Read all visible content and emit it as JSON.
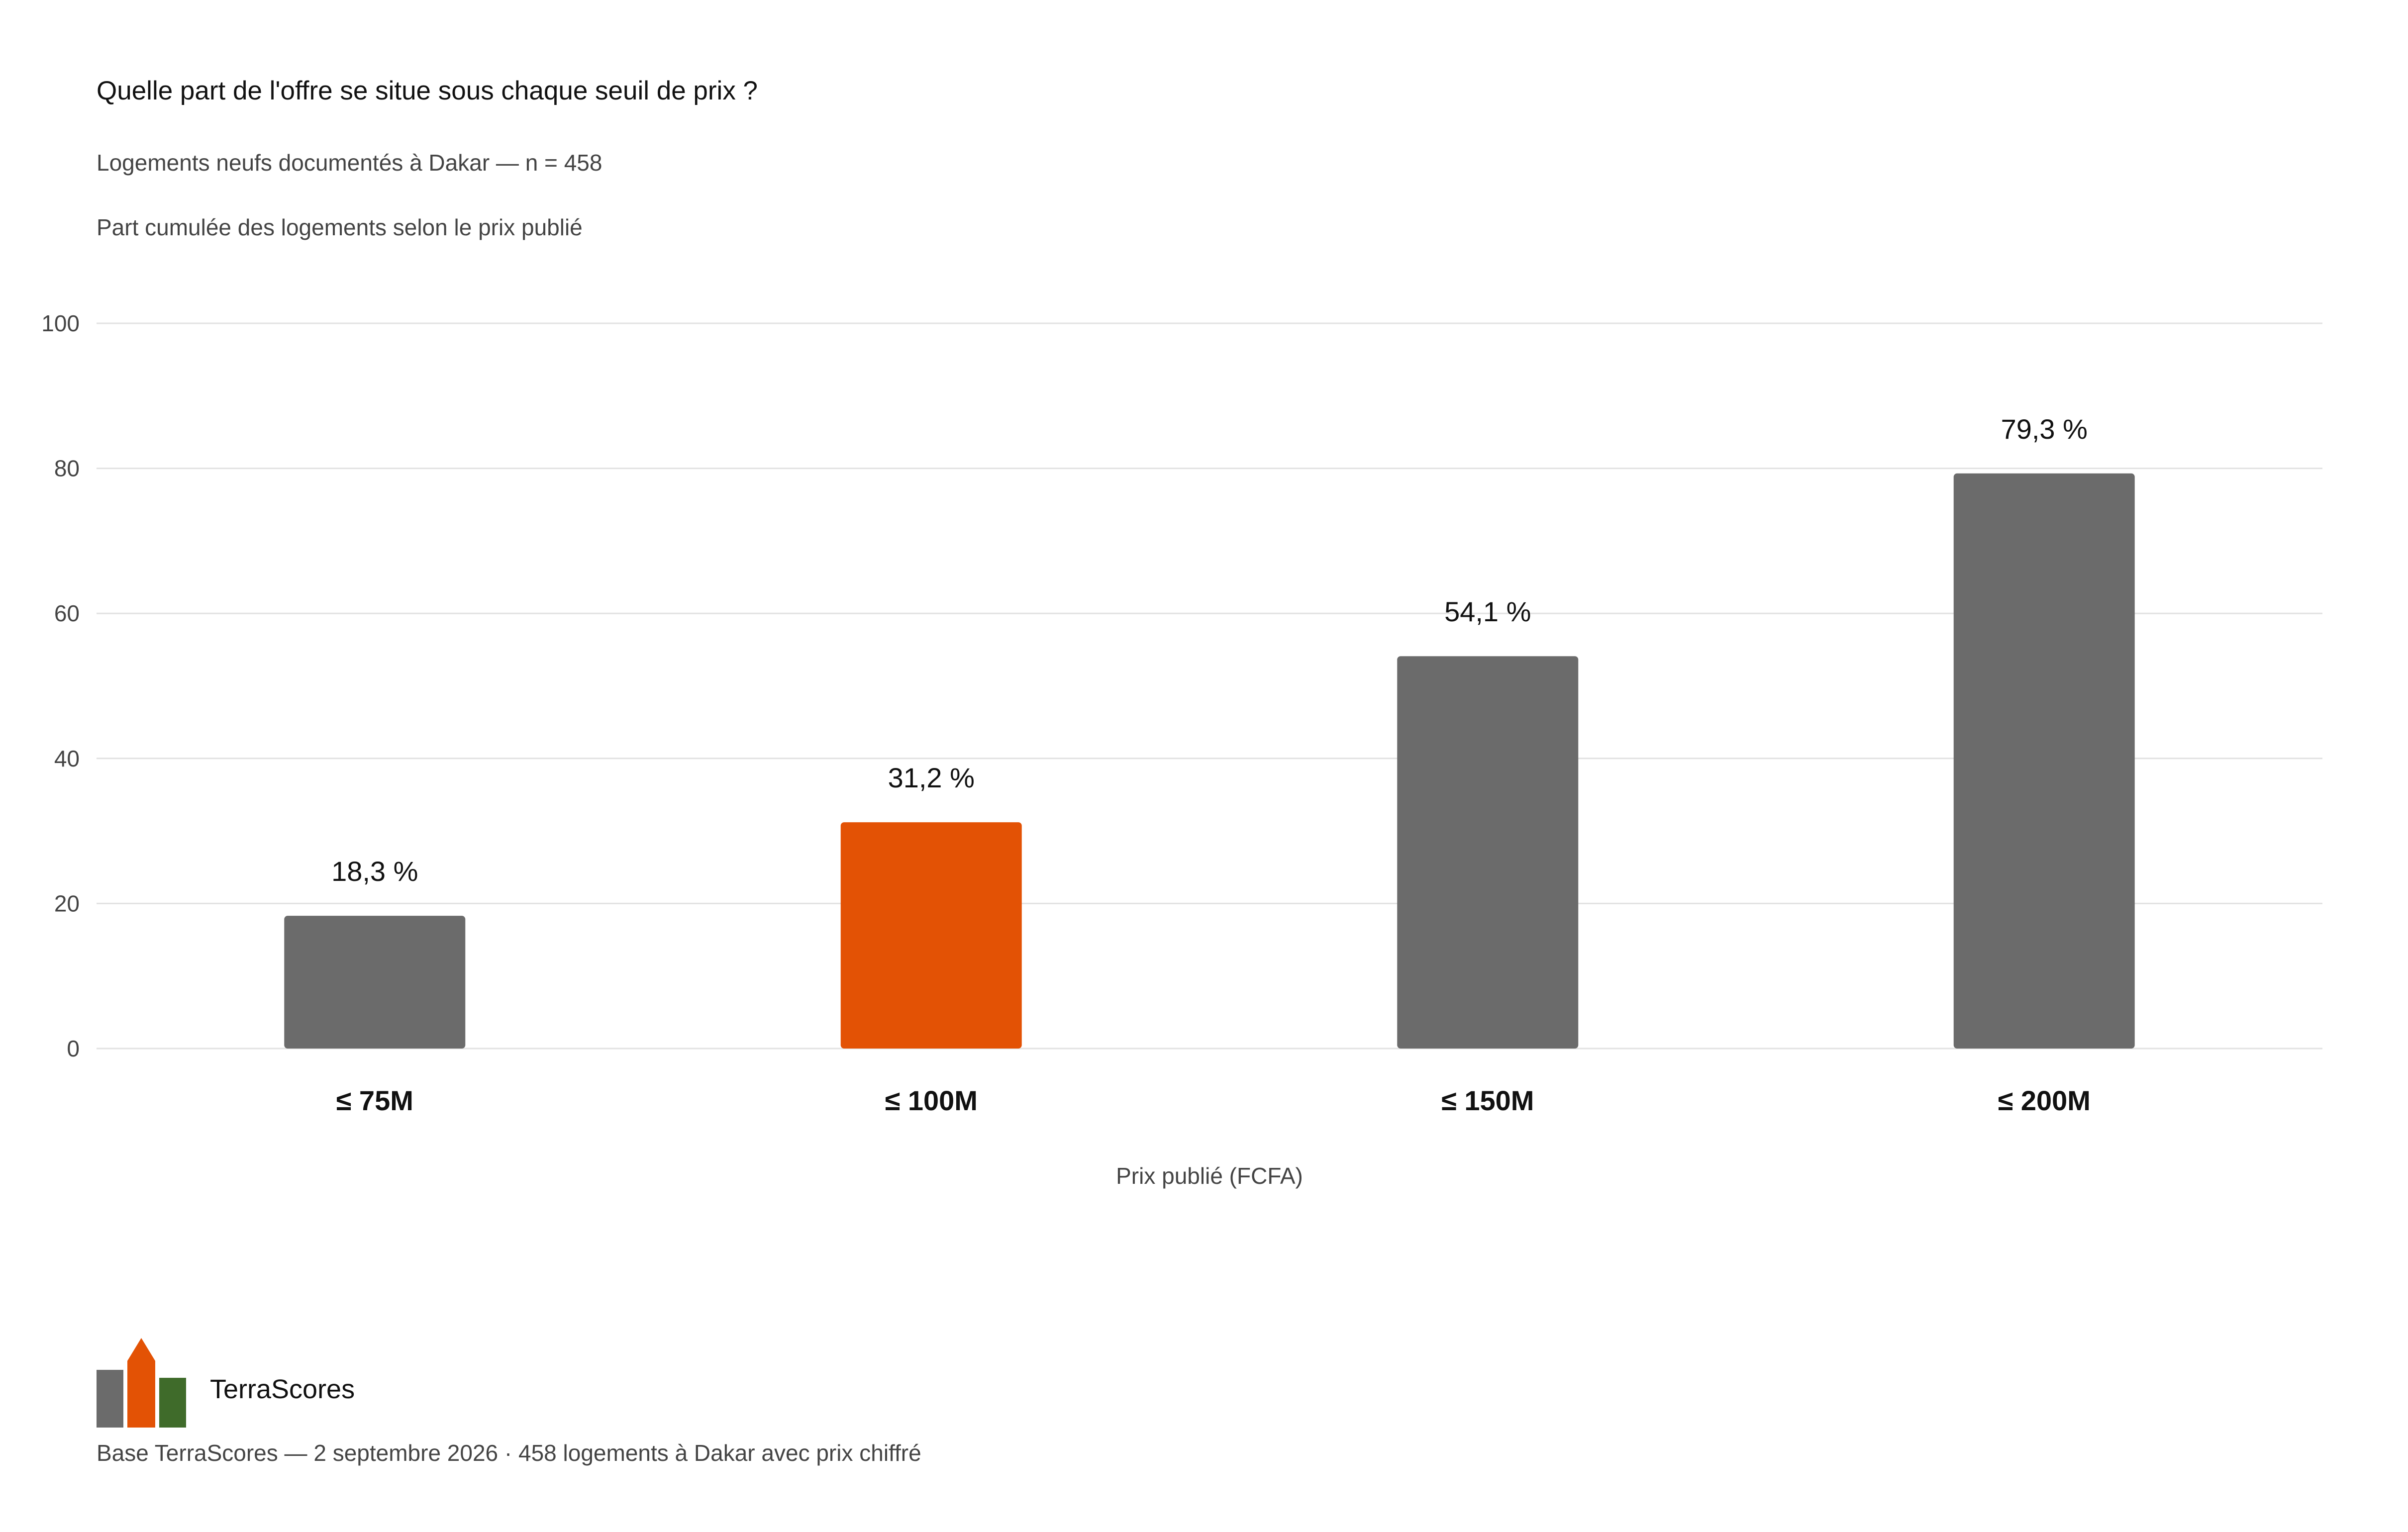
{
  "header": {
    "title": "Quelle part de l'offre se situe sous chaque seuil de prix ?",
    "subtitle": "Logements neufs documentés à Dakar — n = 458",
    "note": "Part cumulée des logements selon le prix publié"
  },
  "footer": {
    "brand": "TerraScores",
    "source": "Base TerraScores — 2 septembre 2026 · 458 logements à Dakar avec prix chiffré"
  },
  "colors": {
    "bar_default": "#6b6b6b",
    "bar_highlight": "#e35205",
    "logo_green": "#3f6b2a",
    "grid": "#e2e2e2"
  },
  "chart_data": {
    "type": "bar",
    "categories": [
      "≤ 75M",
      "≤ 100M",
      "≤ 150M",
      "≤ 200M"
    ],
    "values": [
      18.3,
      31.2,
      54.1,
      79.3
    ],
    "value_labels": [
      "18,3 %",
      "31,2 %",
      "54,1 %",
      "79,3 %"
    ],
    "highlight_index": 1,
    "xlabel": "Prix publié (FCFA)",
    "ylabel": "",
    "ylim": [
      0,
      100
    ],
    "yticks": [
      0,
      20,
      40,
      60,
      80,
      100
    ],
    "grid": true
  }
}
